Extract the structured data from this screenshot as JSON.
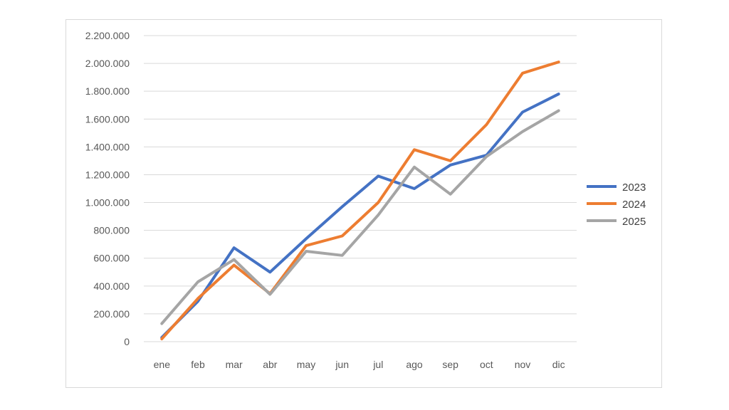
{
  "chart_data": {
    "type": "line",
    "title": "",
    "xlabel": "",
    "ylabel": "",
    "categories": [
      "ene",
      "feb",
      "mar",
      "abr",
      "may",
      "jun",
      "jul",
      "ago",
      "sep",
      "oct",
      "nov",
      "dic"
    ],
    "ylim": [
      0,
      2200000
    ],
    "yticks": [
      0,
      200000,
      400000,
      600000,
      800000,
      1000000,
      1200000,
      1400000,
      1600000,
      1800000,
      2000000,
      2200000
    ],
    "ytick_labels": [
      "0",
      "200.000",
      "400.000",
      "600.000",
      "800.000",
      "1.000.000",
      "1.200.000",
      "1.400.000",
      "1.600.000",
      "1.800.000",
      "2.000.000",
      "2.200.000"
    ],
    "grid": true,
    "legend_position": "right",
    "series": [
      {
        "name": "2023",
        "color": "#4472c4",
        "values": [
          30000,
          290000,
          675000,
          500000,
          740000,
          970000,
          1190000,
          1100000,
          1270000,
          1340000,
          1650000,
          1780000
        ]
      },
      {
        "name": "2024",
        "color": "#ed7d31",
        "values": [
          20000,
          310000,
          550000,
          345000,
          690000,
          760000,
          1000000,
          1380000,
          1300000,
          1560000,
          1930000,
          2010000
        ]
      },
      {
        "name": "2025",
        "color": "#a5a5a5",
        "values": [
          130000,
          430000,
          590000,
          340000,
          650000,
          620000,
          910000,
          1255000,
          1060000,
          1330000,
          1510000,
          1660000
        ]
      }
    ]
  }
}
